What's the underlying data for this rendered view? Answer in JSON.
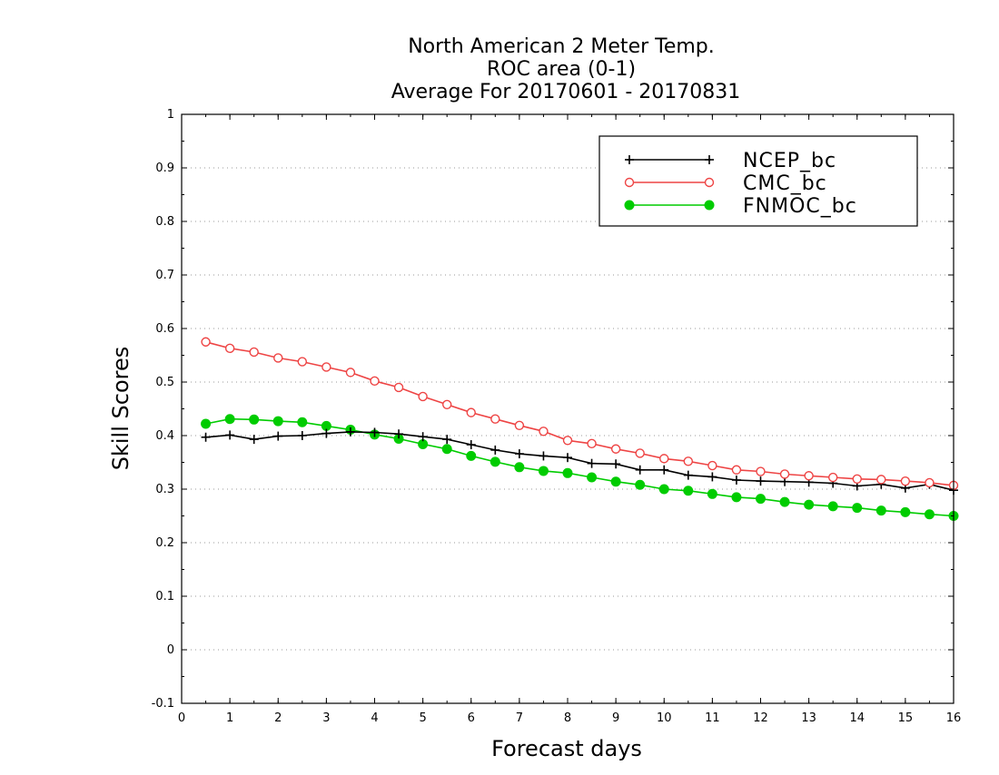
{
  "chart_data": {
    "type": "line",
    "title": [
      "North American 2 Meter Temp.",
      "ROC area (0-1)",
      "Average For 20170601 - 20170831"
    ],
    "xlabel": "Forecast days",
    "ylabel": "Skill Scores",
    "xlim": [
      0,
      16
    ],
    "ylim": [
      -0.1,
      1
    ],
    "x_ticks": [
      0,
      1,
      2,
      3,
      4,
      5,
      6,
      7,
      8,
      9,
      10,
      11,
      12,
      13,
      14,
      15,
      16
    ],
    "y_ticks": [
      -0.1,
      0,
      0.1,
      0.2,
      0.3,
      0.4,
      0.5,
      0.6,
      0.7,
      0.8,
      0.9,
      1
    ],
    "y_tick_labels": [
      "-0.1",
      "0",
      "0.1",
      "0.2",
      "0.3",
      "0.4",
      "0.5",
      "0.6",
      "0.7",
      "0.8",
      "0.9",
      "1"
    ],
    "grid": "horizontal-dotted",
    "legend_position": "top-right",
    "x": [
      0.5,
      1.0,
      1.5,
      2.0,
      2.5,
      3.0,
      3.5,
      4.0,
      4.5,
      5.0,
      5.5,
      6.0,
      6.5,
      7.0,
      7.5,
      8.0,
      8.5,
      9.0,
      9.5,
      10.0,
      10.5,
      11.0,
      11.5,
      12.0,
      12.5,
      13.0,
      13.5,
      14.0,
      14.5,
      15.0,
      15.5,
      16.0
    ],
    "series": [
      {
        "name": "NCEP_bc",
        "color": "#000000",
        "marker": "plus",
        "values": [
          0.397,
          0.401,
          0.393,
          0.399,
          0.4,
          0.404,
          0.407,
          0.406,
          0.403,
          0.398,
          0.393,
          0.383,
          0.373,
          0.366,
          0.362,
          0.359,
          0.348,
          0.347,
          0.336,
          0.336,
          0.326,
          0.323,
          0.317,
          0.315,
          0.314,
          0.313,
          0.311,
          0.306,
          0.309,
          0.302,
          0.309,
          0.298
        ]
      },
      {
        "name": "CMC_bc",
        "color": "#ee4444",
        "marker": "open-circle",
        "values": [
          0.575,
          0.563,
          0.556,
          0.545,
          0.538,
          0.528,
          0.518,
          0.502,
          0.49,
          0.473,
          0.458,
          0.443,
          0.431,
          0.419,
          0.408,
          0.391,
          0.385,
          0.375,
          0.367,
          0.357,
          0.352,
          0.344,
          0.336,
          0.333,
          0.328,
          0.325,
          0.322,
          0.319,
          0.318,
          0.315,
          0.312,
          0.307
        ]
      },
      {
        "name": "FNMOC_bc",
        "color": "#00cc00",
        "marker": "filled-circle",
        "values": [
          0.422,
          0.431,
          0.43,
          0.427,
          0.425,
          0.418,
          0.411,
          0.402,
          0.394,
          0.384,
          0.375,
          0.362,
          0.351,
          0.341,
          0.334,
          0.33,
          0.322,
          0.314,
          0.308,
          0.3,
          0.297,
          0.291,
          0.285,
          0.282,
          0.276,
          0.271,
          0.268,
          0.265,
          0.26,
          0.257,
          0.253,
          0.25
        ]
      }
    ]
  }
}
